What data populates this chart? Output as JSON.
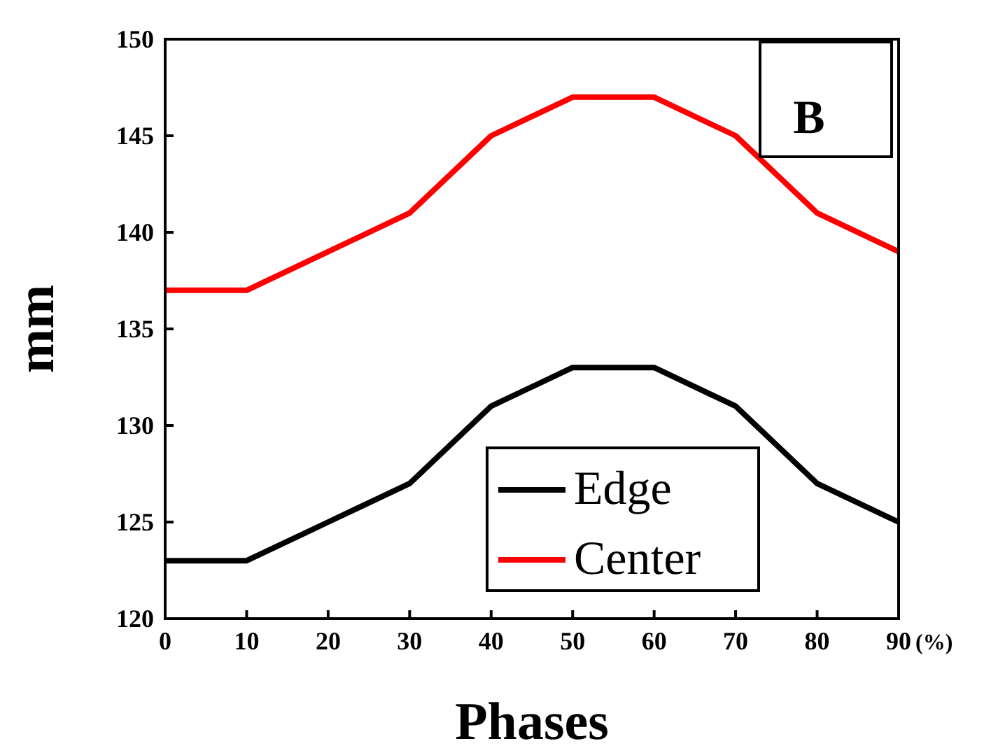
{
  "chart_data": {
    "type": "line",
    "xlabel": "Phases",
    "ylabel": "mm",
    "x": [
      0,
      10,
      20,
      30,
      40,
      50,
      60,
      70,
      80,
      90
    ],
    "series": [
      {
        "name": "Edge",
        "color": "#000000",
        "values": [
          123,
          123,
          125,
          127,
          131,
          133,
          133,
          131,
          127,
          125
        ]
      },
      {
        "name": "Center",
        "color": "#ff0000",
        "values": [
          137,
          137,
          139,
          141,
          145,
          147,
          147,
          145,
          141,
          139
        ]
      }
    ],
    "xlim": [
      0,
      90
    ],
    "xticks": [
      0,
      10,
      20,
      30,
      40,
      50,
      60,
      70,
      80,
      90
    ],
    "ylim": [
      120,
      150
    ],
    "yticks": [
      120,
      125,
      130,
      135,
      140,
      145,
      150
    ],
    "annotations": [
      "B",
      "(%)"
    ],
    "legend": "bottom right",
    "grid": false,
    "marker": "none",
    "line_style": "solid"
  }
}
